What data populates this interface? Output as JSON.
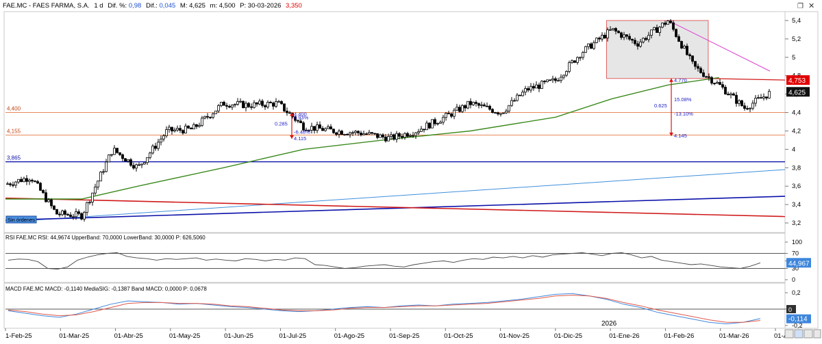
{
  "header": {
    "symbol": "FAE.MC - FAES FARMA, S.A.",
    "timeframe": "1 d",
    "change_pct_label": "Dif. %:",
    "change_pct": "0,98",
    "change_label": "Dif.:",
    "change": "0,045",
    "max_label": "M:",
    "max": "4,625",
    "min_label": "m:",
    "min": "4,500",
    "profit_label": "P:",
    "date_profit": "30-03-2026",
    "profit": "3,350"
  },
  "colors": {
    "background": "#ffffff",
    "candle": "#000000",
    "sma200": "#3c8a1e",
    "red_line": "#d01818",
    "blue_line": "#0a10a8",
    "light_blue_line": "#3e8fdc",
    "support_line": "#e8895a",
    "pink_trend": "#e040d0",
    "box_fill": "#e6e6e6",
    "box_border": "#e06060",
    "annot": "#1c1cc8",
    "arrow": "#e01010",
    "price_tag_red": "#e00000",
    "price_tag_dark": "#101010",
    "rsi_tag": "#3e86dc",
    "macd_tag": "#3e86dc"
  },
  "chart_data": [
    {
      "type": "line",
      "title": "FAE.MC - FAES FARMA, S.A.",
      "x_ticks": [
        "1-Feb-25",
        "01-Mar-25",
        "01-Abr-25",
        "01-May-25",
        "01-Jun-25",
        "01-Jul-25",
        "01-Ago-25",
        "01-Sep-25",
        "01-Oct-25",
        "01-Nov-25",
        "01-Dic-25",
        "01-Ene-26",
        "01-Feb-26",
        "01-Mar-26",
        "01-Ab"
      ],
      "year_label": "2026",
      "y_ticks": [
        "5,4",
        "5,2",
        "5",
        "4,8",
        "4,6",
        "4,4",
        "4,2",
        "4",
        "3,8",
        "3,6",
        "3,4",
        "3,2"
      ],
      "ylim": [
        3.2,
        5.4
      ],
      "series": [
        {
          "x": [
            "2025-02-01",
            "2025-02-15",
            "2025-03-01",
            "2025-03-15",
            "2025-04-01",
            "2025-04-15",
            "2025-05-01",
            "2025-05-15",
            "2025-06-01",
            "2025-06-15",
            "2025-07-01",
            "2025-07-15",
            "2025-08-01",
            "2025-08-15",
            "2025-09-01",
            "2025-09-15",
            "2025-10-01",
            "2025-10-15",
            "2025-11-01",
            "2025-11-15",
            "2025-12-01",
            "2025-12-15",
            "2026-01-01",
            "2026-01-15",
            "2026-02-01",
            "2026-02-15",
            "2026-03-01",
            "2026-03-15",
            "2026-03-30"
          ],
          "values": [
            3.62,
            3.7,
            3.3,
            3.28,
            4.0,
            3.8,
            4.2,
            4.22,
            4.5,
            4.48,
            4.5,
            4.25,
            4.2,
            4.18,
            4.12,
            4.2,
            4.35,
            4.5,
            4.4,
            4.65,
            4.75,
            5.05,
            5.3,
            5.15,
            5.4,
            4.9,
            4.7,
            4.45,
            4.625
          ]
        },
        {
          "name": "SMA",
          "x": [
            "2025-02-01",
            "2025-03-15",
            "2025-04-15",
            "2025-06-01",
            "2025-07-15",
            "2025-09-01",
            "2025-10-15",
            "2025-12-01",
            "2026-01-01",
            "2026-02-01",
            "2026-03-01"
          ],
          "values": [
            3.46,
            3.46,
            3.6,
            3.8,
            4.0,
            4.11,
            4.2,
            4.35,
            4.55,
            4.7,
            4.78
          ]
        }
      ],
      "horizontal_levels": [
        {
          "label": "4,400",
          "value": 4.4
        },
        {
          "label": "4,155",
          "value": 4.155
        },
        {
          "label": "3,865",
          "value": 3.865
        }
      ],
      "ellipse_label": "Sin órdenes",
      "annotations": {
        "left": {
          "top": "4.400",
          "diff": "0.285",
          "pct_up": "6.93%",
          "pct_down": "-6.48%",
          "bottom": "4.115",
          "top_value": 4.4,
          "bottom_value": 4.115
        },
        "right": {
          "top": "4.770",
          "diff": "0.625",
          "pct_up": "15.08%",
          "pct_down": "-13.10%",
          "bottom": "4.145",
          "top_value": 4.77,
          "bottom_value": 4.145
        }
      },
      "price_tags": [
        {
          "label": "4,753",
          "value": 4.753
        },
        {
          "label": "4,625",
          "value": 4.625
        }
      ]
    },
    {
      "type": "line",
      "title": "RSI FAE.MC",
      "legend": "RSI FAE.MC  RSI: 44,9674  UpperBand: 70,0000  LowerBand: 30,0000  P: 626,5060",
      "y_ticks": [
        "100",
        "70",
        "50",
        "30",
        "0"
      ],
      "ylim": [
        0,
        100
      ],
      "bands": [
        70,
        30
      ],
      "values": [
        52,
        55,
        54,
        48,
        30,
        28,
        34,
        52,
        60,
        66,
        70,
        72,
        62,
        58,
        56,
        52,
        56,
        54,
        56,
        58,
        52,
        55,
        52,
        50,
        56,
        54,
        50,
        54,
        52,
        58,
        56,
        40,
        38,
        34,
        30,
        32,
        36,
        38,
        40,
        36,
        34,
        40,
        44,
        48,
        50,
        46,
        52,
        56,
        54,
        60,
        58,
        62,
        58,
        64,
        60,
        66,
        68,
        70,
        72,
        68,
        64,
        70,
        72,
        66,
        58,
        62,
        52,
        48,
        44,
        40,
        42,
        38,
        34,
        32,
        30,
        36,
        44.97
      ],
      "last_tag": "44,967"
    },
    {
      "type": "line",
      "title": "MACD FAE.MC",
      "legend": "MACD FAE.MC  MACD: -0,1140  MediaSIG: -0,1387  Band MACD: 0,0000  P: 0,0678",
      "y_ticks": [
        "0,2",
        "0",
        "-0,2"
      ],
      "ylim": [
        -0.2,
        0.2
      ],
      "series": [
        {
          "name": "MACD",
          "values": [
            -0.02,
            -0.05,
            -0.08,
            -0.1,
            -0.06,
            0.0,
            0.06,
            0.1,
            0.09,
            0.08,
            0.06,
            0.07,
            0.05,
            0.03,
            0.02,
            0.0,
            -0.02,
            -0.03,
            -0.02,
            0.0,
            0.02,
            0.03,
            0.02,
            0.04,
            0.05,
            0.04,
            0.06,
            0.07,
            0.08,
            0.1,
            0.12,
            0.15,
            0.18,
            0.19,
            0.16,
            0.12,
            0.06,
            0.02,
            -0.04,
            -0.08,
            -0.12,
            -0.16,
            -0.18,
            -0.16,
            -0.114
          ]
        },
        {
          "name": "MediaSIG",
          "values": [
            -0.01,
            -0.03,
            -0.06,
            -0.08,
            -0.07,
            -0.03,
            0.02,
            0.07,
            0.08,
            0.08,
            0.07,
            0.07,
            0.06,
            0.04,
            0.03,
            0.01,
            -0.01,
            -0.02,
            -0.02,
            -0.01,
            0.01,
            0.02,
            0.02,
            0.03,
            0.04,
            0.04,
            0.05,
            0.06,
            0.07,
            0.09,
            0.11,
            0.13,
            0.16,
            0.17,
            0.16,
            0.13,
            0.08,
            0.04,
            -0.01,
            -0.05,
            -0.09,
            -0.13,
            -0.16,
            -0.16,
            -0.1387
          ]
        }
      ],
      "last_tag": "-0,114",
      "zero_tag": "0"
    }
  ]
}
